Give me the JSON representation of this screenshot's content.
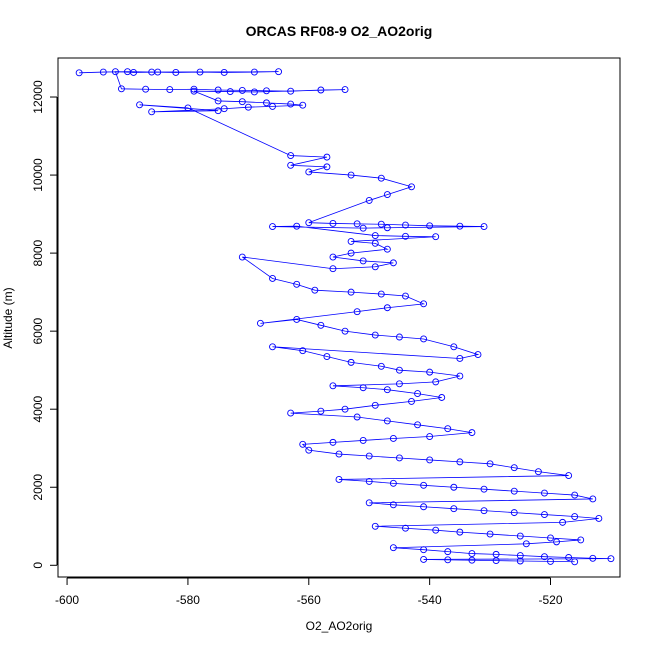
{
  "chart_data": {
    "type": "scatter",
    "title": "ORCAS RF08-9 O2_AO2orig",
    "xlabel": "O2_AO2orig",
    "ylabel": "Altitude (m)",
    "xlim": [
      -601.5,
      -508.5
    ],
    "ylim": [
      -300,
      13000
    ],
    "xticks": [
      -600,
      -580,
      -560,
      -540,
      -520
    ],
    "yticks": [
      0,
      2000,
      4000,
      6000,
      8000,
      10000,
      12000
    ],
    "grid": false,
    "marker": "open-circle",
    "connected_by_lines": true,
    "color": "#0000ff",
    "series": [
      {
        "values": [
          [
            -598,
            12620
          ],
          [
            -594,
            12640
          ],
          [
            -590,
            12650
          ],
          [
            -586,
            12640
          ],
          [
            -582,
            12630
          ],
          [
            -578,
            12640
          ],
          [
            -574,
            12630
          ],
          [
            -569,
            12640
          ],
          [
            -565,
            12650
          ],
          [
            -585,
            12640
          ],
          [
            -589,
            12630
          ],
          [
            -592,
            12650
          ],
          [
            -591,
            12210
          ],
          [
            -587,
            12200
          ],
          [
            -583,
            12190
          ],
          [
            -579,
            12200
          ],
          [
            -575,
            12180
          ],
          [
            -571,
            12170
          ],
          [
            -567,
            12160
          ],
          [
            -563,
            12150
          ],
          [
            -558,
            12180
          ],
          [
            -554,
            12190
          ],
          [
            -569,
            12130
          ],
          [
            -573,
            12140
          ],
          [
            -579,
            12150
          ],
          [
            -575,
            11900
          ],
          [
            -571,
            11880
          ],
          [
            -567,
            11850
          ],
          [
            -563,
            11820
          ],
          [
            -561,
            11790
          ],
          [
            -566,
            11760
          ],
          [
            -570,
            11740
          ],
          [
            -574,
            11700
          ],
          [
            -586,
            11620
          ],
          [
            -575,
            11650
          ],
          [
            -588,
            11800
          ],
          [
            -580,
            11720
          ],
          [
            -563,
            10500
          ],
          [
            -557,
            10460
          ],
          [
            -563,
            10250
          ],
          [
            -557,
            10210
          ],
          [
            -560,
            10080
          ],
          [
            -553,
            10000
          ],
          [
            -548,
            9920
          ],
          [
            -543,
            9700
          ],
          [
            -547,
            9500
          ],
          [
            -550,
            9350
          ],
          [
            -560,
            8780
          ],
          [
            -556,
            8760
          ],
          [
            -552,
            8750
          ],
          [
            -548,
            8740
          ],
          [
            -544,
            8720
          ],
          [
            -540,
            8700
          ],
          [
            -535,
            8690
          ],
          [
            -531,
            8680
          ],
          [
            -547,
            8650
          ],
          [
            -551,
            8640
          ],
          [
            -566,
            8680
          ],
          [
            -562,
            8690
          ],
          [
            -549,
            8450
          ],
          [
            -544,
            8430
          ],
          [
            -539,
            8420
          ],
          [
            -553,
            8300
          ],
          [
            -549,
            8250
          ],
          [
            -547,
            8100
          ],
          [
            -553,
            8000
          ],
          [
            -556,
            7900
          ],
          [
            -551,
            7800
          ],
          [
            -546,
            7750
          ],
          [
            -549,
            7650
          ],
          [
            -556,
            7600
          ],
          [
            -571,
            7900
          ],
          [
            -566,
            7350
          ],
          [
            -562,
            7200
          ],
          [
            -559,
            7050
          ],
          [
            -553,
            7000
          ],
          [
            -548,
            6950
          ],
          [
            -544,
            6900
          ],
          [
            -541,
            6700
          ],
          [
            -547,
            6600
          ],
          [
            -552,
            6500
          ],
          [
            -568,
            6200
          ],
          [
            -562,
            6300
          ],
          [
            -558,
            6150
          ],
          [
            -554,
            6000
          ],
          [
            -549,
            5900
          ],
          [
            -545,
            5850
          ],
          [
            -541,
            5800
          ],
          [
            -536,
            5600
          ],
          [
            -532,
            5400
          ],
          [
            -535,
            5300
          ],
          [
            -566,
            5600
          ],
          [
            -561,
            5500
          ],
          [
            -557,
            5350
          ],
          [
            -553,
            5200
          ],
          [
            -548,
            5100
          ],
          [
            -545,
            5000
          ],
          [
            -540,
            4950
          ],
          [
            -535,
            4850
          ],
          [
            -539,
            4700
          ],
          [
            -545,
            4650
          ],
          [
            -556,
            4600
          ],
          [
            -551,
            4550
          ],
          [
            -547,
            4500
          ],
          [
            -542,
            4400
          ],
          [
            -538,
            4300
          ],
          [
            -543,
            4200
          ],
          [
            -549,
            4100
          ],
          [
            -554,
            4000
          ],
          [
            -558,
            3950
          ],
          [
            -563,
            3900
          ],
          [
            -552,
            3800
          ],
          [
            -547,
            3700
          ],
          [
            -542,
            3600
          ],
          [
            -537,
            3500
          ],
          [
            -533,
            3400
          ],
          [
            -540,
            3300
          ],
          [
            -546,
            3250
          ],
          [
            -551,
            3200
          ],
          [
            -556,
            3150
          ],
          [
            -561,
            3100
          ],
          [
            -560,
            2950
          ],
          [
            -555,
            2850
          ],
          [
            -550,
            2800
          ],
          [
            -545,
            2750
          ],
          [
            -540,
            2700
          ],
          [
            -535,
            2650
          ],
          [
            -530,
            2600
          ],
          [
            -526,
            2500
          ],
          [
            -522,
            2400
          ],
          [
            -517,
            2300
          ],
          [
            -555,
            2200
          ],
          [
            -550,
            2150
          ],
          [
            -546,
            2100
          ],
          [
            -541,
            2050
          ],
          [
            -536,
            2000
          ],
          [
            -531,
            1950
          ],
          [
            -526,
            1900
          ],
          [
            -521,
            1850
          ],
          [
            -516,
            1800
          ],
          [
            -513,
            1700
          ],
          [
            -550,
            1600
          ],
          [
            -546,
            1550
          ],
          [
            -541,
            1500
          ],
          [
            -536,
            1450
          ],
          [
            -531,
            1400
          ],
          [
            -526,
            1350
          ],
          [
            -521,
            1300
          ],
          [
            -516,
            1250
          ],
          [
            -512,
            1200
          ],
          [
            -518,
            1100
          ],
          [
            -549,
            1000
          ],
          [
            -544,
            950
          ],
          [
            -539,
            900
          ],
          [
            -535,
            850
          ],
          [
            -530,
            800
          ],
          [
            -525,
            750
          ],
          [
            -520,
            700
          ],
          [
            -515,
            650
          ],
          [
            -519,
            600
          ],
          [
            -524,
            550
          ],
          [
            -546,
            450
          ],
          [
            -541,
            400
          ],
          [
            -537,
            350
          ],
          [
            -533,
            300
          ],
          [
            -529,
            280
          ],
          [
            -525,
            250
          ],
          [
            -521,
            220
          ],
          [
            -517,
            200
          ],
          [
            -513,
            180
          ],
          [
            -510,
            170
          ],
          [
            -541,
            150
          ],
          [
            -537,
            140
          ],
          [
            -533,
            130
          ],
          [
            -529,
            120
          ],
          [
            -525,
            110
          ],
          [
            -520,
            100
          ],
          [
            -516,
            90
          ]
        ]
      }
    ]
  }
}
